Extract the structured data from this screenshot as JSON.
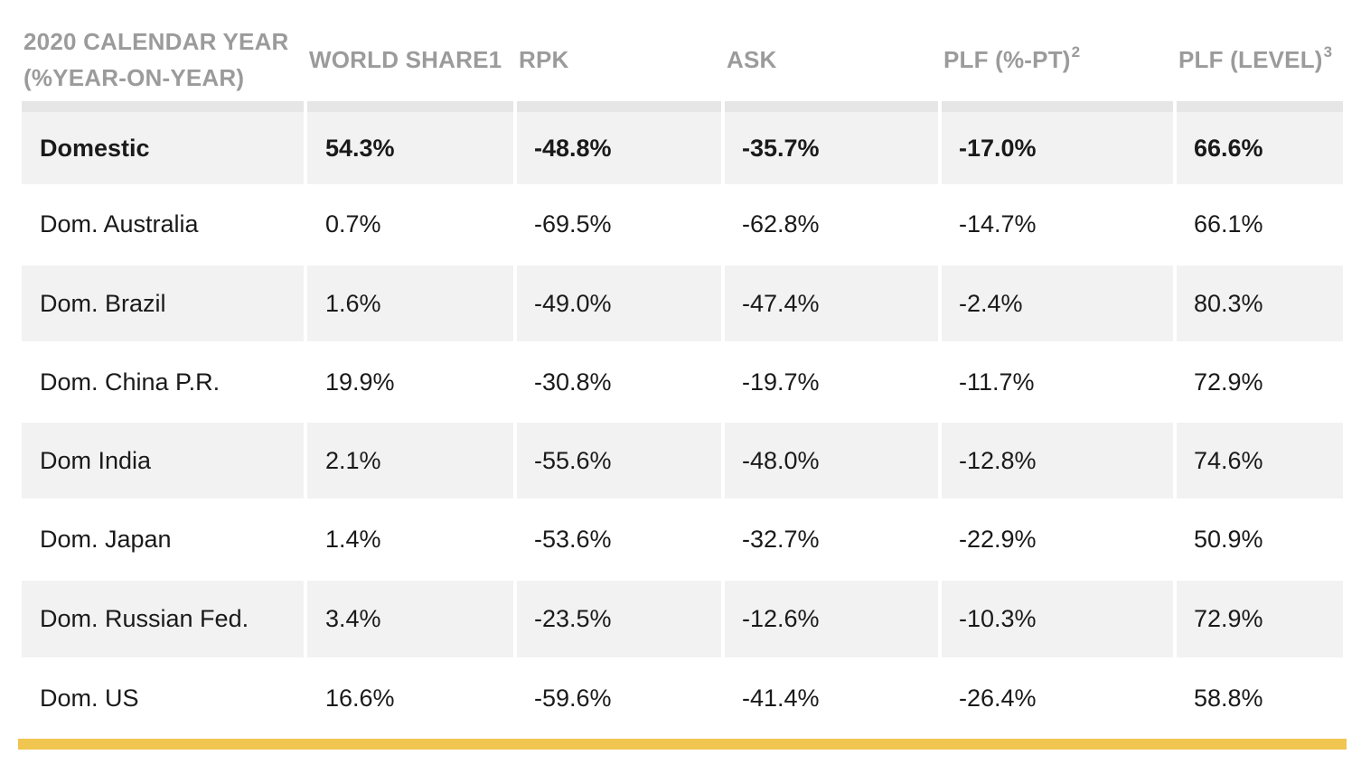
{
  "table": {
    "headers": {
      "col0_line1": "2020 CALENDAR YEAR",
      "col0_line2": "(%YEAR-ON-YEAR)",
      "col1": "WORLD SHARE1",
      "col2": "RPK",
      "col3": "ASK",
      "col4": "PLF (%-PT)",
      "col4_sup": "2",
      "col5": "PLF (LEVEL)",
      "col5_sup": "3"
    },
    "rows": [
      {
        "region": "Domestic",
        "world_share": "54.3%",
        "rpk": "-48.8%",
        "ask": "-35.7%",
        "plf_pt": "-17.0%",
        "plf_level": "66.6%"
      },
      {
        "region": "Dom. Australia",
        "world_share": "0.7%",
        "rpk": "-69.5%",
        "ask": "-62.8%",
        "plf_pt": "-14.7%",
        "plf_level": "66.1%"
      },
      {
        "region": "Dom. Brazil",
        "world_share": "1.6%",
        "rpk": "-49.0%",
        "ask": "-47.4%",
        "plf_pt": "-2.4%",
        "plf_level": "80.3%"
      },
      {
        "region": "Dom. China P.R.",
        "world_share": "19.9%",
        "rpk": "-30.8%",
        "ask": "-19.7%",
        "plf_pt": "-11.7%",
        "plf_level": "72.9%"
      },
      {
        "region": "Dom India",
        "world_share": "2.1%",
        "rpk": "-55.6%",
        "ask": "-48.0%",
        "plf_pt": "-12.8%",
        "plf_level": "74.6%"
      },
      {
        "region": "Dom. Japan",
        "world_share": "1.4%",
        "rpk": "-53.6%",
        "ask": "-32.7%",
        "plf_pt": "-22.9%",
        "plf_level": "50.9%"
      },
      {
        "region": "Dom. Russian Fed.",
        "world_share": "3.4%",
        "rpk": "-23.5%",
        "ask": "-12.6%",
        "plf_pt": "-10.3%",
        "plf_level": "72.9%"
      },
      {
        "region": "Dom. US",
        "world_share": "16.6%",
        "rpk": "-59.6%",
        "ask": "-41.4%",
        "plf_pt": "-26.4%",
        "plf_level": "58.8%"
      }
    ]
  },
  "colors": {
    "header_text": "#9b9b9b",
    "row_shade": "#f2f2f2",
    "header_rule": "#e6e6e6",
    "footer_accent": "#f0c550"
  }
}
